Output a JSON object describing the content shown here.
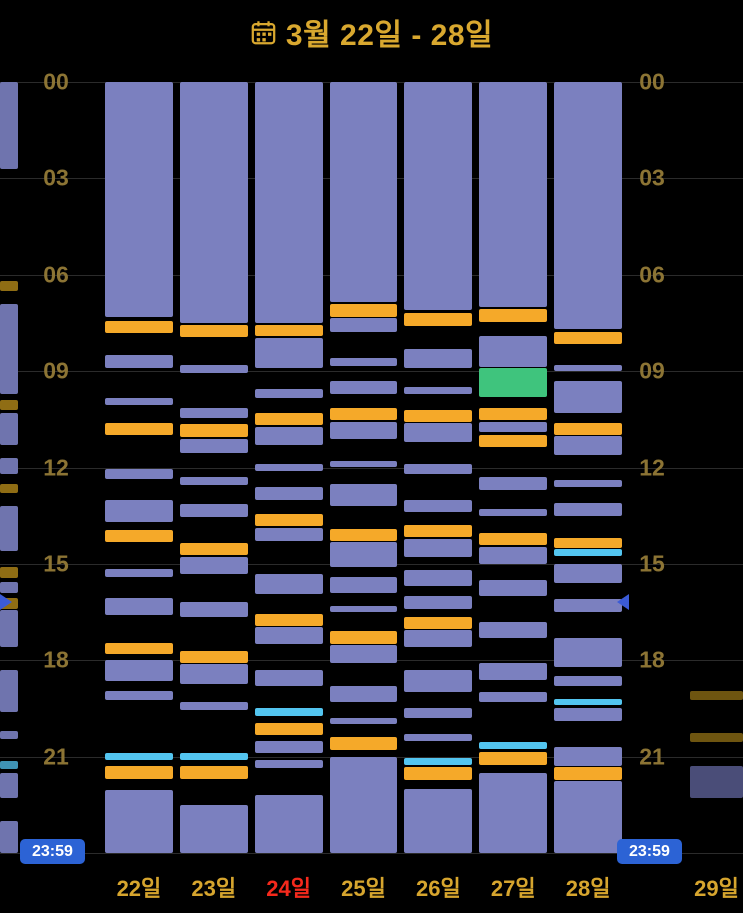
{
  "header": {
    "icon": "calendar-icon",
    "title": "3월 22일 - 28일"
  },
  "axis": {
    "hour_labels": [
      "00",
      "03",
      "06",
      "09",
      "12",
      "15",
      "18",
      "21"
    ],
    "hours_per_step": 3
  },
  "footer": {
    "left_end_time": "23:59",
    "right_end_time": "23:59"
  },
  "colors": {
    "purple": "#7b80bf",
    "purpleDim": "#6f74ae",
    "purpleDim2": "#4a4d78",
    "orange": "#f5a929",
    "gold": "#8f6d14",
    "goldDim": "#6e5510",
    "cyan": "#53c5f0",
    "cyanDim": "#3f93b5",
    "green": "#3fc47d",
    "title": "#d9a82f",
    "axis_label": "#8c7434",
    "day_label": "#d6a52e",
    "day_label_red": "#f5291c",
    "badge_bg": "#2c63d5",
    "badge_text": "#ffffff",
    "marker": "#3b5bd6",
    "gridline": "#2b2b2b",
    "background": "#000000"
  },
  "markers": {
    "hour": 16.2
  },
  "days": [
    {
      "label": "22일",
      "color": "#d6a52e",
      "segments": [
        {
          "s": 0,
          "e": 7.3,
          "c": "purple"
        },
        {
          "s": 7.45,
          "e": 7.82,
          "c": "orange"
        },
        {
          "s": 8.5,
          "e": 8.9,
          "c": "purple"
        },
        {
          "s": 9.85,
          "e": 10.05,
          "c": "purple"
        },
        {
          "s": 10.6,
          "e": 11.0,
          "c": "orange"
        },
        {
          "s": 12.05,
          "e": 12.35,
          "c": "purple"
        },
        {
          "s": 13.0,
          "e": 13.7,
          "c": "purple"
        },
        {
          "s": 13.95,
          "e": 14.32,
          "c": "orange"
        },
        {
          "s": 15.15,
          "e": 15.4,
          "c": "purple"
        },
        {
          "s": 16.05,
          "e": 16.6,
          "c": "purple"
        },
        {
          "s": 17.45,
          "e": 17.82,
          "c": "orange"
        },
        {
          "s": 18.0,
          "e": 18.65,
          "c": "purple"
        },
        {
          "s": 18.95,
          "e": 19.25,
          "c": "purple"
        },
        {
          "s": 20.9,
          "e": 21.1,
          "c": "cyan"
        },
        {
          "s": 21.3,
          "e": 21.7,
          "c": "orange"
        },
        {
          "s": 22.05,
          "e": 24,
          "c": "purple"
        }
      ]
    },
    {
      "label": "23일",
      "color": "#d6a52e",
      "segments": [
        {
          "s": 0,
          "e": 7.5,
          "c": "purple"
        },
        {
          "s": 7.57,
          "e": 7.95,
          "c": "orange"
        },
        {
          "s": 8.8,
          "e": 9.05,
          "c": "purple"
        },
        {
          "s": 10.15,
          "e": 10.45,
          "c": "purple"
        },
        {
          "s": 10.65,
          "e": 11.05,
          "c": "orange"
        },
        {
          "s": 11.1,
          "e": 11.55,
          "c": "purple"
        },
        {
          "s": 12.3,
          "e": 12.55,
          "c": "purple"
        },
        {
          "s": 13.15,
          "e": 13.55,
          "c": "purple"
        },
        {
          "s": 14.35,
          "e": 14.72,
          "c": "orange"
        },
        {
          "s": 14.78,
          "e": 15.3,
          "c": "purple"
        },
        {
          "s": 16.2,
          "e": 16.65,
          "c": "purple"
        },
        {
          "s": 17.7,
          "e": 18.08,
          "c": "orange"
        },
        {
          "s": 18.12,
          "e": 18.75,
          "c": "purple"
        },
        {
          "s": 19.3,
          "e": 19.55,
          "c": "purple"
        },
        {
          "s": 20.9,
          "e": 21.1,
          "c": "cyan"
        },
        {
          "s": 21.3,
          "e": 21.7,
          "c": "orange"
        },
        {
          "s": 22.5,
          "e": 24,
          "c": "purple"
        }
      ]
    },
    {
      "label": "24일",
      "color": "#f5291c",
      "segments": [
        {
          "s": 0,
          "e": 7.5,
          "c": "purple"
        },
        {
          "s": 7.55,
          "e": 7.92,
          "c": "orange"
        },
        {
          "s": 7.97,
          "e": 8.9,
          "c": "purple"
        },
        {
          "s": 9.55,
          "e": 9.85,
          "c": "purple"
        },
        {
          "s": 10.3,
          "e": 10.68,
          "c": "orange"
        },
        {
          "s": 10.73,
          "e": 11.3,
          "c": "purple"
        },
        {
          "s": 11.9,
          "e": 12.1,
          "c": "purple"
        },
        {
          "s": 12.6,
          "e": 13.0,
          "c": "purple"
        },
        {
          "s": 13.45,
          "e": 13.82,
          "c": "orange"
        },
        {
          "s": 13.87,
          "e": 14.3,
          "c": "purple"
        },
        {
          "s": 15.3,
          "e": 15.95,
          "c": "purple"
        },
        {
          "s": 16.55,
          "e": 16.92,
          "c": "orange"
        },
        {
          "s": 16.97,
          "e": 17.5,
          "c": "purple"
        },
        {
          "s": 18.3,
          "e": 18.8,
          "c": "purple"
        },
        {
          "s": 19.5,
          "e": 19.72,
          "c": "cyan"
        },
        {
          "s": 19.95,
          "e": 20.32,
          "c": "orange"
        },
        {
          "s": 20.5,
          "e": 20.9,
          "c": "purple"
        },
        {
          "s": 21.1,
          "e": 21.35,
          "c": "purple"
        },
        {
          "s": 22.2,
          "e": 24,
          "c": "purple"
        }
      ]
    },
    {
      "label": "25일",
      "color": "#d6a52e",
      "segments": [
        {
          "s": 0,
          "e": 6.85,
          "c": "purple"
        },
        {
          "s": 6.92,
          "e": 7.3,
          "c": "orange"
        },
        {
          "s": 7.35,
          "e": 7.78,
          "c": "purple"
        },
        {
          "s": 8.6,
          "e": 8.85,
          "c": "purple"
        },
        {
          "s": 9.3,
          "e": 9.7,
          "c": "purple"
        },
        {
          "s": 10.15,
          "e": 10.52,
          "c": "orange"
        },
        {
          "s": 10.57,
          "e": 11.1,
          "c": "purple"
        },
        {
          "s": 11.8,
          "e": 12.0,
          "c": "purple"
        },
        {
          "s": 12.5,
          "e": 13.2,
          "c": "purple"
        },
        {
          "s": 13.9,
          "e": 14.28,
          "c": "orange"
        },
        {
          "s": 14.33,
          "e": 15.1,
          "c": "purple"
        },
        {
          "s": 15.4,
          "e": 15.9,
          "c": "purple"
        },
        {
          "s": 16.3,
          "e": 16.5,
          "c": "purple"
        },
        {
          "s": 17.1,
          "e": 17.48,
          "c": "orange"
        },
        {
          "s": 17.53,
          "e": 18.1,
          "c": "purple"
        },
        {
          "s": 18.8,
          "e": 19.3,
          "c": "purple"
        },
        {
          "s": 19.8,
          "e": 20.0,
          "c": "purple"
        },
        {
          "s": 20.4,
          "e": 20.78,
          "c": "orange"
        },
        {
          "s": 21.0,
          "e": 24,
          "c": "purple"
        }
      ]
    },
    {
      "label": "26일",
      "color": "#d6a52e",
      "segments": [
        {
          "s": 0,
          "e": 7.1,
          "c": "purple"
        },
        {
          "s": 7.2,
          "e": 7.58,
          "c": "orange"
        },
        {
          "s": 8.3,
          "e": 8.9,
          "c": "purple"
        },
        {
          "s": 9.5,
          "e": 9.72,
          "c": "purple"
        },
        {
          "s": 10.2,
          "e": 10.58,
          "c": "orange"
        },
        {
          "s": 10.63,
          "e": 11.2,
          "c": "purple"
        },
        {
          "s": 11.9,
          "e": 12.2,
          "c": "purple"
        },
        {
          "s": 13.0,
          "e": 13.4,
          "c": "purple"
        },
        {
          "s": 13.8,
          "e": 14.17,
          "c": "orange"
        },
        {
          "s": 14.22,
          "e": 14.8,
          "c": "purple"
        },
        {
          "s": 15.2,
          "e": 15.7,
          "c": "purple"
        },
        {
          "s": 16.0,
          "e": 16.4,
          "c": "purple"
        },
        {
          "s": 16.65,
          "e": 17.02,
          "c": "orange"
        },
        {
          "s": 17.07,
          "e": 17.6,
          "c": "purple"
        },
        {
          "s": 18.3,
          "e": 19.0,
          "c": "purple"
        },
        {
          "s": 19.5,
          "e": 19.8,
          "c": "purple"
        },
        {
          "s": 20.3,
          "e": 20.5,
          "c": "purple"
        },
        {
          "s": 21.05,
          "e": 21.25,
          "c": "cyan"
        },
        {
          "s": 21.32,
          "e": 21.72,
          "c": "orange"
        },
        {
          "s": 22.0,
          "e": 24,
          "c": "purple"
        }
      ]
    },
    {
      "label": "27일",
      "color": "#d6a52e",
      "segments": [
        {
          "s": 0,
          "e": 7.0,
          "c": "purple"
        },
        {
          "s": 7.08,
          "e": 7.46,
          "c": "orange"
        },
        {
          "s": 7.9,
          "e": 8.88,
          "c": "purple"
        },
        {
          "s": 8.9,
          "e": 9.8,
          "c": "green"
        },
        {
          "s": 10.15,
          "e": 10.52,
          "c": "orange"
        },
        {
          "s": 10.57,
          "e": 10.88,
          "c": "purple"
        },
        {
          "s": 11.0,
          "e": 11.35,
          "c": "orange"
        },
        {
          "s": 12.3,
          "e": 12.7,
          "c": "purple"
        },
        {
          "s": 13.3,
          "e": 13.5,
          "c": "purple"
        },
        {
          "s": 14.05,
          "e": 14.42,
          "c": "orange"
        },
        {
          "s": 14.47,
          "e": 15.0,
          "c": "purple"
        },
        {
          "s": 15.5,
          "e": 16.0,
          "c": "purple"
        },
        {
          "s": 16.8,
          "e": 17.3,
          "c": "purple"
        },
        {
          "s": 18.1,
          "e": 18.6,
          "c": "purple"
        },
        {
          "s": 19.0,
          "e": 19.3,
          "c": "purple"
        },
        {
          "s": 20.55,
          "e": 20.75,
          "c": "cyan"
        },
        {
          "s": 20.85,
          "e": 21.25,
          "c": "orange"
        },
        {
          "s": 21.5,
          "e": 24,
          "c": "purple"
        }
      ]
    },
    {
      "label": "28일",
      "color": "#d6a52e",
      "segments": [
        {
          "s": 0,
          "e": 7.7,
          "c": "purple"
        },
        {
          "s": 7.78,
          "e": 8.15,
          "c": "orange"
        },
        {
          "s": 8.8,
          "e": 9.0,
          "c": "purple"
        },
        {
          "s": 9.3,
          "e": 10.3,
          "c": "purple"
        },
        {
          "s": 10.6,
          "e": 10.98,
          "c": "orange"
        },
        {
          "s": 11.03,
          "e": 11.6,
          "c": "purple"
        },
        {
          "s": 12.4,
          "e": 12.6,
          "c": "purple"
        },
        {
          "s": 13.1,
          "e": 13.5,
          "c": "purple"
        },
        {
          "s": 14.2,
          "e": 14.5,
          "c": "orange"
        },
        {
          "s": 14.55,
          "e": 14.75,
          "c": "cyan"
        },
        {
          "s": 15.0,
          "e": 15.6,
          "c": "purple"
        },
        {
          "s": 16.1,
          "e": 16.5,
          "c": "purple"
        },
        {
          "s": 17.3,
          "e": 18.2,
          "c": "purple"
        },
        {
          "s": 18.5,
          "e": 18.8,
          "c": "purple"
        },
        {
          "s": 19.2,
          "e": 19.4,
          "c": "cyan"
        },
        {
          "s": 19.5,
          "e": 19.9,
          "c": "purple"
        },
        {
          "s": 20.7,
          "e": 21.3,
          "c": "purple"
        },
        {
          "s": 21.32,
          "e": 21.72,
          "c": "orange"
        },
        {
          "s": 21.75,
          "e": 24,
          "c": "purple"
        }
      ]
    }
  ],
  "adjacent": {
    "left": {
      "segments": [
        {
          "s": 0,
          "e": 2.7,
          "c": "purpleDim"
        },
        {
          "s": 6.2,
          "e": 6.5,
          "c": "gold"
        },
        {
          "s": 6.9,
          "e": 9.7,
          "c": "purpleDim"
        },
        {
          "s": 9.9,
          "e": 10.2,
          "c": "gold"
        },
        {
          "s": 10.3,
          "e": 11.3,
          "c": "purpleDim"
        },
        {
          "s": 11.7,
          "e": 12.2,
          "c": "purpleDim"
        },
        {
          "s": 12.5,
          "e": 12.8,
          "c": "gold"
        },
        {
          "s": 13.2,
          "e": 14.6,
          "c": "purpleDim"
        },
        {
          "s": 15.1,
          "e": 15.45,
          "c": "gold"
        },
        {
          "s": 15.55,
          "e": 15.9,
          "c": "purpleDim"
        },
        {
          "s": 16.05,
          "e": 16.4,
          "c": "gold"
        },
        {
          "s": 16.45,
          "e": 17.6,
          "c": "purpleDim"
        },
        {
          "s": 18.3,
          "e": 19.6,
          "c": "purpleDim"
        },
        {
          "s": 20.2,
          "e": 20.45,
          "c": "purpleDim"
        },
        {
          "s": 21.15,
          "e": 21.4,
          "c": "cyanDim"
        },
        {
          "s": 21.5,
          "e": 22.3,
          "c": "purpleDim"
        },
        {
          "s": 23.0,
          "e": 24,
          "c": "purpleDim"
        }
      ]
    },
    "right": {
      "label": "29일",
      "segments": [
        {
          "s": 18.95,
          "e": 19.25,
          "c": "goldDim"
        },
        {
          "s": 20.25,
          "e": 20.55,
          "c": "goldDim"
        },
        {
          "s": 21.3,
          "e": 22.3,
          "c": "purpleDim2"
        }
      ]
    }
  }
}
